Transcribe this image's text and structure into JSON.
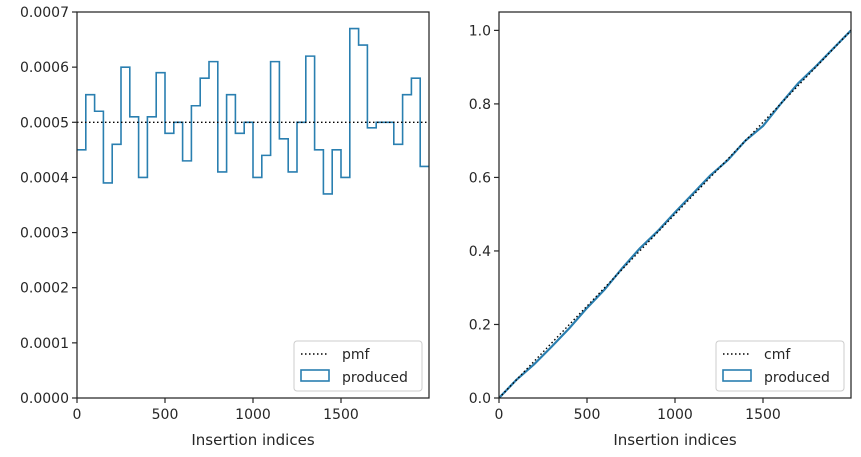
{
  "chart_data": [
    {
      "type": "step",
      "xlabel": "Insertion indices",
      "ylabel": "",
      "xlim": [
        0,
        2000
      ],
      "ylim": [
        0,
        0.0007
      ],
      "xticks": [
        0,
        500,
        1000,
        1500
      ],
      "xtick_labels": [
        "0",
        "500",
        "1000",
        "1500"
      ],
      "yticks": [
        0,
        0.0001,
        0.0002,
        0.0003,
        0.0004,
        0.0005,
        0.0006,
        0.0007
      ],
      "ytick_labels": [
        "0.0000",
        "0.0001",
        "0.0002",
        "0.0003",
        "0.0004",
        "0.0005",
        "0.0006",
        "0.0007"
      ],
      "grid": false,
      "legend_position": "lower-right",
      "bin_edges": [
        0,
        50,
        100,
        150,
        200,
        250,
        300,
        350,
        400,
        450,
        500,
        550,
        600,
        650,
        700,
        750,
        800,
        850,
        900,
        950,
        1000,
        1050,
        1100,
        1150,
        1200,
        1250,
        1300,
        1350,
        1400,
        1450,
        1500,
        1550,
        1600,
        1650,
        1700,
        1750,
        1800,
        1850,
        1900,
        1950,
        2000
      ],
      "series": [
        {
          "name": "pmf",
          "style": "dotted",
          "color": "#000000",
          "values": [
            0.0005,
            0.0005
          ]
        },
        {
          "name": "produced",
          "style": "step",
          "color": "#2a7fb0",
          "values": [
            0.00045,
            0.00055,
            0.00052,
            0.00039,
            0.00046,
            0.0006,
            0.00051,
            0.0004,
            0.00051,
            0.00059,
            0.00048,
            0.0005,
            0.00043,
            0.00053,
            0.00058,
            0.00061,
            0.00041,
            0.00055,
            0.00048,
            0.0005,
            0.0004,
            0.00044,
            0.00061,
            0.00047,
            0.00041,
            0.0005,
            0.00062,
            0.00045,
            0.00037,
            0.00045,
            0.0004,
            0.00067,
            0.00064,
            0.00049,
            0.0005,
            0.0005,
            0.00046,
            0.00055,
            0.00058,
            0.00042
          ]
        }
      ]
    },
    {
      "type": "step",
      "xlabel": "Insertion indices",
      "ylabel": "",
      "xlim": [
        0,
        2000
      ],
      "ylim": [
        0,
        1.05
      ],
      "xticks": [
        0,
        500,
        1000,
        1500
      ],
      "xtick_labels": [
        "0",
        "500",
        "1000",
        "1500"
      ],
      "yticks": [
        0,
        0.2,
        0.4,
        0.6,
        0.8,
        1.0
      ],
      "ytick_labels": [
        "0.0",
        "0.2",
        "0.4",
        "0.6",
        "0.8",
        "1.0"
      ],
      "grid": false,
      "legend_position": "lower-right",
      "series": [
        {
          "name": "cmf",
          "style": "dotted",
          "color": "#000000",
          "x": [
            0,
            2000
          ],
          "values": [
            0,
            1.0
          ]
        },
        {
          "name": "produced",
          "style": "step",
          "color": "#2a7fb0",
          "x": [
            0,
            100,
            200,
            300,
            400,
            500,
            600,
            700,
            800,
            900,
            1000,
            1100,
            1200,
            1300,
            1400,
            1500,
            1600,
            1700,
            1800,
            1900,
            2000
          ],
          "values": [
            0,
            0.05,
            0.092,
            0.14,
            0.19,
            0.245,
            0.295,
            0.353,
            0.407,
            0.453,
            0.505,
            0.555,
            0.605,
            0.647,
            0.7,
            0.74,
            0.8,
            0.856,
            0.902,
            0.951,
            1.0
          ]
        }
      ]
    }
  ]
}
